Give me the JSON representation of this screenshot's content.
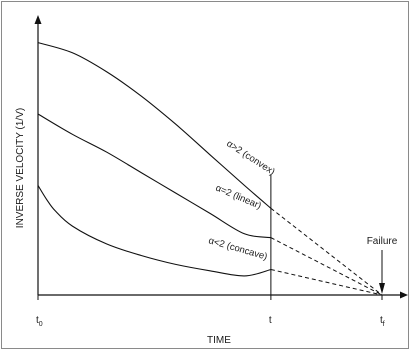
{
  "chart_data": {
    "type": "line",
    "title": "",
    "xlabel": "TIME",
    "ylabel": "INVERSE VELOCITY (1/V)",
    "x_ticks": [
      {
        "main": "t",
        "sub": "0",
        "x": 0
      },
      {
        "main": "t",
        "sub": "",
        "x": 0.677
      },
      {
        "main": "t",
        "sub": "f",
        "x": 1
      }
    ],
    "xlim": [
      0,
      1
    ],
    "ylim": [
      0,
      1
    ],
    "grid": false,
    "series": [
      {
        "name": "α>2 (convex)",
        "x": [
          0,
          0.1,
          0.2,
          0.3,
          0.4,
          0.5,
          0.6,
          0.677
        ],
        "y": [
          0.99,
          0.95,
          0.875,
          0.78,
          0.67,
          0.55,
          0.43,
          0.34
        ],
        "extrapolate_to": [
          1,
          0
        ]
      },
      {
        "name": "α=2 (linear)",
        "x": [
          0,
          0.1,
          0.2,
          0.3,
          0.4,
          0.5,
          0.6,
          0.677
        ],
        "y": [
          0.71,
          0.63,
          0.56,
          0.48,
          0.4,
          0.32,
          0.24,
          0.225
        ],
        "extrapolate_to": [
          1,
          0
        ]
      },
      {
        "name": "α<2 (concave)",
        "x": [
          0,
          0.025,
          0.05,
          0.1,
          0.2,
          0.3,
          0.4,
          0.5,
          0.6,
          0.677
        ],
        "y": [
          0.43,
          0.375,
          0.33,
          0.27,
          0.2,
          0.155,
          0.12,
          0.095,
          0.075,
          0.1
        ],
        "extrapolate_to": [
          1,
          0
        ]
      }
    ],
    "annotations": [
      {
        "text": "Failure",
        "x": 1,
        "y": 0
      }
    ]
  }
}
